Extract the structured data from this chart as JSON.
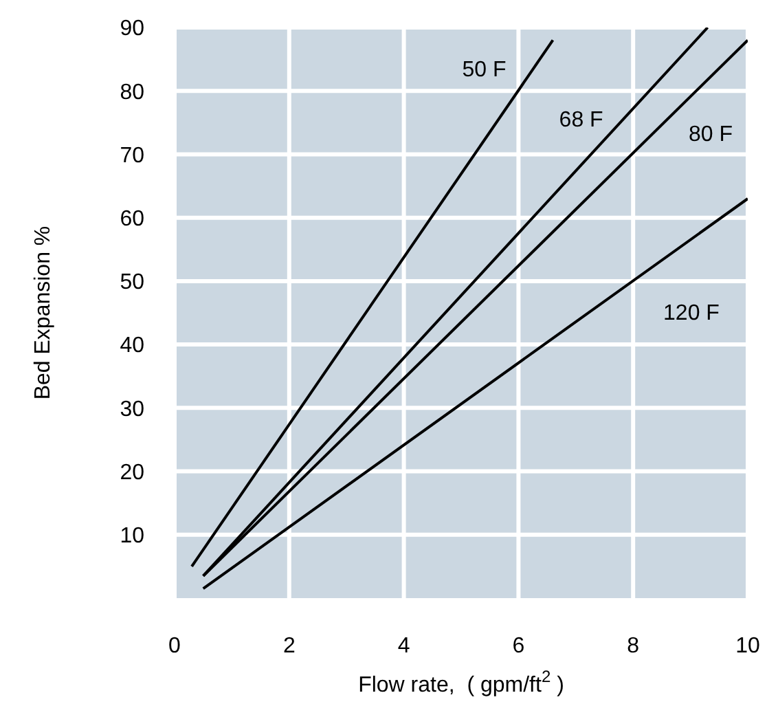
{
  "chart_data": {
    "type": "line",
    "xlabel": "Flow rate,  ( gpm/ft$^{2}$ )",
    "ylabel": "Bed Expansion %",
    "xlim": [
      0,
      10
    ],
    "ylim": [
      0,
      90
    ],
    "xticks": [
      0,
      2,
      4,
      6,
      8,
      10
    ],
    "yticks": [
      10,
      20,
      30,
      40,
      50,
      60,
      70,
      80,
      90
    ],
    "grid": true,
    "legend": false,
    "marker": "none",
    "line_style": "solid",
    "series": [
      {
        "name": "50 F",
        "color": "#000000",
        "x": [
          0.3,
          6.6
        ],
        "values": [
          5,
          88
        ]
      },
      {
        "name": "68 F",
        "color": "#000000",
        "x": [
          0.5,
          9.3
        ],
        "values": [
          3.5,
          90
        ]
      },
      {
        "name": "80 F",
        "color": "#000000",
        "x": [
          0.5,
          10
        ],
        "values": [
          3.5,
          88
        ]
      },
      {
        "name": "120 F",
        "color": "#000000",
        "x": [
          0.5,
          10
        ],
        "values": [
          1.5,
          63
        ]
      }
    ]
  }
}
